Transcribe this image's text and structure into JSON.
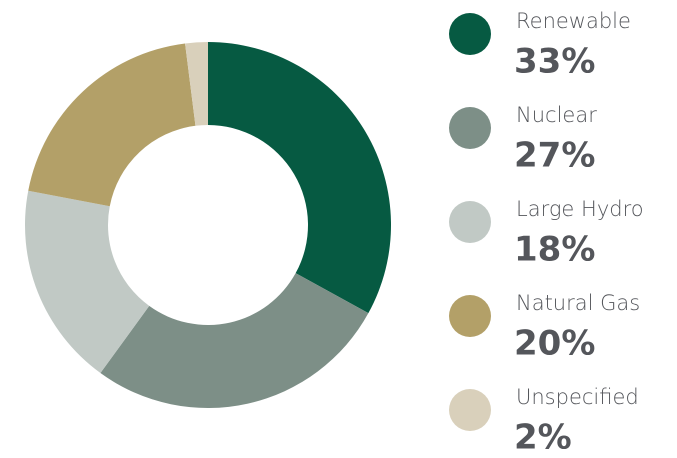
{
  "chart_data": {
    "type": "donut",
    "categories": [
      "Renewable",
      "Nuclear",
      "Large Hydro",
      "Natural Gas",
      "Unspecified"
    ],
    "values": [
      33,
      27,
      18,
      20,
      2
    ],
    "value_labels": [
      "33%",
      "27%",
      "18%",
      "20%",
      "2%"
    ],
    "colors": [
      "#065a42",
      "#7d8f87",
      "#c1c9c5",
      "#b3a068",
      "#d9d0bb"
    ]
  }
}
